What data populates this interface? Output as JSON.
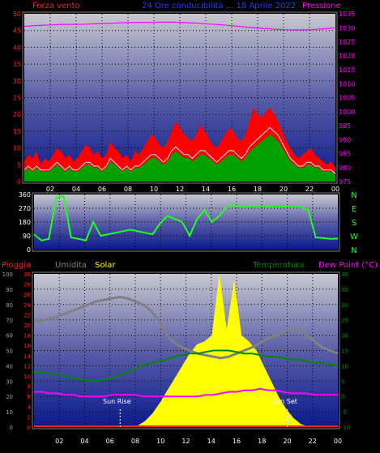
{
  "header": {
    "left_label": "Forza vento",
    "center_label": "24 Ore conducibilità ... 18 Aprile 2022",
    "right_label": "Pressione"
  },
  "colors": {
    "wind": "#ff2020",
    "gust": "#ff0000",
    "avgwind": "#00a000",
    "pressure": "#ff00ff",
    "direction": "#20ff20",
    "humidity": "#808080",
    "solar": "#ffff00",
    "temperature": "#008800",
    "dewpoint": "#ff00ff",
    "rain": "#ff2020"
  },
  "footer": {
    "labels": {
      "rain": "Pioggia",
      "humidity": "Umidita",
      "solar": "Solar",
      "temperature": "Temperatura",
      "dewpoint": "Dew Point (°C)"
    },
    "sunrise_label": "Sun Rise",
    "sunset_label": "Sun Set"
  },
  "chart_data": [
    {
      "type": "line",
      "left_axis": {
        "ticks": [
          0,
          5,
          10,
          15,
          20,
          25,
          30,
          35,
          40,
          45,
          50
        ],
        "range": [
          0,
          50
        ]
      },
      "right_axis": {
        "ticks": [
          975,
          980,
          985,
          990,
          995,
          1000,
          1005,
          1010,
          1015,
          1020,
          1025,
          1030,
          1035
        ],
        "range": [
          975,
          1035
        ]
      },
      "x_ticks": [
        "02",
        "04",
        "06",
        "08",
        "10",
        "12",
        "14",
        "16",
        "18",
        "20",
        "22",
        "00"
      ],
      "wind_gust": [
        6,
        8,
        7,
        9,
        5,
        7,
        6,
        8,
        10,
        9,
        7,
        8,
        6,
        7,
        9,
        11,
        10,
        8,
        9,
        7,
        8,
        12,
        10,
        9,
        7,
        8,
        6,
        9,
        8,
        10,
        12,
        14,
        13,
        11,
        10,
        12,
        15,
        18,
        16,
        14,
        13,
        12,
        14,
        17,
        15,
        13,
        11,
        10,
        12,
        14,
        16,
        15,
        13,
        12,
        14,
        18,
        22,
        20,
        19,
        21,
        22,
        20,
        18,
        15,
        12,
        10,
        8,
        7,
        8,
        9,
        10,
        8,
        7,
        6,
        5,
        6,
        4
      ],
      "wind_avg": [
        3,
        4,
        3,
        4,
        3,
        3,
        3,
        4,
        5,
        4,
        3,
        4,
        3,
        3,
        4,
        5,
        5,
        4,
        4,
        3,
        4,
        6,
        5,
        4,
        3,
        4,
        3,
        4,
        4,
        5,
        6,
        7,
        7,
        6,
        5,
        6,
        8,
        9,
        8,
        7,
        7,
        6,
        7,
        8,
        8,
        7,
        6,
        5,
        6,
        7,
        8,
        8,
        7,
        6,
        7,
        9,
        10,
        11,
        12,
        13,
        14,
        13,
        12,
        10,
        8,
        6,
        5,
        4,
        4,
        5,
        5,
        4,
        4,
        3,
        3,
        3,
        2
      ],
      "pressure": [
        1030.5,
        1030.8,
        1031.0,
        1031.2,
        1031.2,
        1031.3,
        1031.5,
        1031.6,
        1031.8,
        1031.9,
        1031.9,
        1032.0,
        1032.0,
        1031.8,
        1031.6,
        1031.3,
        1031.0,
        1030.6,
        1030.2,
        1029.8,
        1029.5,
        1029.3,
        1029.2,
        1029.3,
        1029.6,
        1030.0
      ],
      "direction_ticks": [
        0,
        90,
        180,
        270,
        360
      ],
      "direction_labels": [
        "N",
        "W",
        "S",
        "E",
        "N"
      ],
      "direction": [
        100,
        60,
        70,
        340,
        350,
        80,
        70,
        60,
        180,
        90,
        100,
        110,
        120,
        130,
        120,
        110,
        100,
        170,
        220,
        200,
        180,
        90,
        200,
        260,
        180,
        220,
        280,
        290,
        280,
        285,
        288,
        285,
        280,
        282,
        285,
        280,
        278,
        260,
        80,
        75,
        70,
        72
      ]
    },
    {
      "type": "line",
      "left_axis": {
        "ticks": [
          0,
          10,
          20,
          30,
          40,
          50,
          60,
          70,
          80,
          90,
          100
        ],
        "range": [
          0,
          100
        ]
      },
      "rain_axis": {
        "ticks": [
          0,
          2,
          4,
          6,
          8,
          10,
          12,
          14,
          16,
          18,
          20,
          22,
          24,
          26,
          28,
          30
        ],
        "range": [
          0,
          30
        ]
      },
      "right_axis": {
        "ticks": [
          -10,
          -5,
          0,
          5,
          10,
          15,
          20,
          25,
          30,
          35,
          40
        ],
        "range": [
          -10,
          40
        ]
      },
      "x_ticks": [
        "02",
        "04",
        "06",
        "08",
        "10",
        "12",
        "14",
        "16",
        "18",
        "20",
        "22",
        "00"
      ],
      "humidity": [
        70,
        69,
        71,
        72,
        74,
        76,
        78,
        80,
        82,
        83,
        84,
        85,
        84,
        82,
        80,
        76,
        70,
        60,
        55,
        52,
        50,
        48,
        47,
        46,
        45,
        46,
        48,
        50,
        52,
        55,
        58,
        60,
        62,
        64,
        63,
        60,
        56,
        52,
        50,
        48
      ],
      "solar": [
        0,
        0,
        0,
        0,
        0,
        0,
        0,
        0,
        0,
        0,
        0,
        0,
        0,
        0,
        5,
        20,
        45,
        80,
        120,
        160,
        200,
        240,
        270,
        280,
        300,
        500,
        320,
        480,
        300,
        280,
        250,
        200,
        150,
        100,
        60,
        30,
        10,
        2,
        0,
        0,
        0,
        0
      ],
      "temperature": [
        8,
        8,
        7.5,
        7,
        6.5,
        6,
        5.5,
        5,
        5,
        5.5,
        6,
        7,
        8,
        9,
        10,
        11,
        11.5,
        12,
        13,
        13.5,
        14,
        14,
        14.5,
        15,
        15,
        15,
        14.5,
        14,
        14,
        13.5,
        13,
        13,
        12.5,
        12,
        12,
        11.5,
        11,
        11,
        10.5,
        10
      ],
      "dewpoint": [
        1.5,
        1.5,
        1,
        1,
        0.5,
        0.5,
        0,
        0,
        0,
        0,
        0.5,
        0.5,
        0.5,
        0.5,
        0,
        0,
        0,
        0,
        0,
        0,
        0,
        0,
        0.5,
        0.5,
        1,
        1.5,
        1.5,
        2,
        2,
        2.5,
        2,
        2,
        1.5,
        1,
        1,
        1,
        0.5,
        0.5,
        0.5,
        0.5
      ],
      "sunrise_hour": 6.8,
      "sunset_hour": 20.0
    }
  ]
}
